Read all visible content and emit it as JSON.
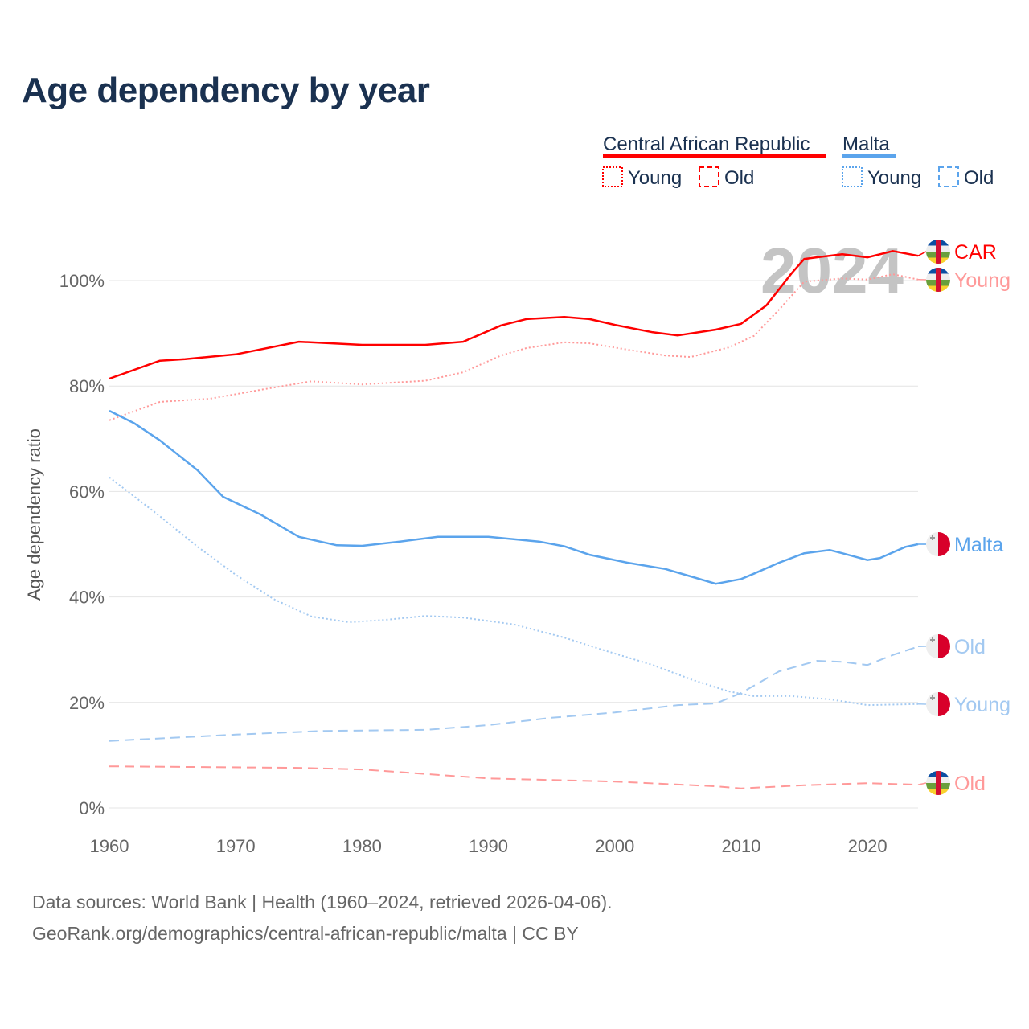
{
  "title": "Age dependency by year",
  "footer": {
    "line1": "Data sources: World Bank | Health (1960–2024, retrieved 2026-04-06).",
    "line2": "GeoRank.org/demographics/central-african-republic/malta | CC BY"
  },
  "legend": {
    "countries": [
      {
        "name": "Central African Republic",
        "color": "#ff0000"
      },
      {
        "name": "Malta",
        "color": "#5ba4ec"
      }
    ],
    "young": "Young",
    "old": "Old"
  },
  "year_label": "2024",
  "chart_data": {
    "type": "line",
    "title": "Age dependency by year",
    "ylabel": "Age dependency ratio",
    "xlim": [
      1960,
      2024
    ],
    "ylim": [
      0,
      110
    ],
    "xticks": [
      "1960",
      "1970",
      "1980",
      "1990",
      "2000",
      "2010",
      "2020"
    ],
    "yticks": [
      "0%",
      "20%",
      "40%",
      "60%",
      "80%",
      "100%"
    ],
    "series": [
      {
        "name": "CAR",
        "label": "CAR",
        "color": "#ff0000",
        "dash": "solid",
        "flag": "car",
        "x": [
          1960,
          1964,
          1966,
          1970,
          1975,
          1980,
          1985,
          1988,
          1991,
          1993,
          1996,
          1998,
          2000,
          2003,
          2005,
          2008,
          2010,
          2012,
          2014,
          2015,
          2018,
          2020,
          2022,
          2024
        ],
        "y": [
          81.4,
          84.8,
          85.1,
          86,
          88.4,
          87.8,
          87.8,
          88.4,
          91.5,
          92.7,
          93.1,
          92.7,
          91.6,
          90.2,
          89.6,
          90.7,
          91.8,
          95.3,
          101.4,
          104.1,
          105,
          104.4,
          105.6,
          104.7
        ]
      },
      {
        "name": "CAR Young",
        "label": "Young",
        "color": "#ff9999",
        "dash": "dotted",
        "flag": "car",
        "x": [
          1960,
          1964,
          1968,
          1972,
          1976,
          1980,
          1985,
          1988,
          1991,
          1993,
          1996,
          1998,
          2001,
          2004,
          2006,
          2009,
          2011,
          2013,
          2015,
          2018,
          2020,
          2022,
          2024
        ],
        "y": [
          73.5,
          77,
          77.6,
          79.3,
          80.9,
          80.3,
          81,
          82.6,
          85.8,
          87.2,
          88.3,
          88.1,
          86.9,
          85.8,
          85.5,
          87.3,
          89.5,
          94.5,
          99.8,
          100.4,
          100.2,
          101.2,
          100.2
        ]
      },
      {
        "name": "CAR Old",
        "label": "Old",
        "color": "#ff9999",
        "dash": "dashed",
        "flag": "car",
        "x": [
          1960,
          1975,
          1980,
          1990,
          2000,
          2008,
          2010,
          2015,
          2020,
          2024
        ],
        "y": [
          7.9,
          7.6,
          7.3,
          5.6,
          5,
          4.1,
          3.7,
          4.3,
          4.7,
          4.4
        ]
      },
      {
        "name": "Malta",
        "label": "Malta",
        "color": "#5ba4ec",
        "dash": "solid",
        "flag": "malta",
        "x": [
          1960,
          1962,
          1964,
          1967,
          1969,
          1972,
          1975,
          1978,
          1980,
          1983,
          1986,
          1990,
          1994,
          1996,
          1998,
          2001,
          2004,
          2006,
          2008,
          2010,
          2011,
          2013,
          2015,
          2017,
          2018,
          2020,
          2021,
          2023,
          2024
        ],
        "y": [
          75.3,
          72.9,
          69.7,
          64,
          59,
          55.6,
          51.4,
          49.8,
          49.7,
          50.5,
          51.4,
          51.4,
          50.5,
          49.6,
          48,
          46.5,
          45.3,
          43.9,
          42.5,
          43.4,
          44.4,
          46.5,
          48.3,
          48.9,
          48.3,
          47,
          47.4,
          49.5,
          50
        ]
      },
      {
        "name": "Malta Young",
        "label": "Young",
        "color": "#a3c9f1",
        "dash": "dotted",
        "flag": "malta",
        "x": [
          1960,
          1964,
          1967,
          1970,
          1973,
          1976,
          1979,
          1982,
          1985,
          1988,
          1992,
          1996,
          1999,
          2003,
          2006,
          2009,
          2011,
          2014,
          2017,
          2020,
          2024
        ],
        "y": [
          62.7,
          55.3,
          49.5,
          44.2,
          39.6,
          36.3,
          35.2,
          35.7,
          36.4,
          36.1,
          34.8,
          32.3,
          30,
          27.1,
          24.4,
          22.1,
          21.2,
          21.2,
          20.6,
          19.5,
          19.7
        ]
      },
      {
        "name": "Malta Old",
        "label": "Old",
        "color": "#a3c9f1",
        "dash": "dashed",
        "flag": "malta",
        "x": [
          1960,
          1970,
          1977,
          1985,
          1990,
          1995,
          2000,
          2005,
          2008,
          2010,
          2013,
          2016,
          2018,
          2020,
          2022,
          2024
        ],
        "y": [
          12.7,
          13.9,
          14.6,
          14.8,
          15.7,
          17.1,
          18.1,
          19.5,
          19.8,
          21.8,
          25.9,
          27.9,
          27.7,
          27.1,
          29,
          30.6
        ]
      }
    ]
  }
}
